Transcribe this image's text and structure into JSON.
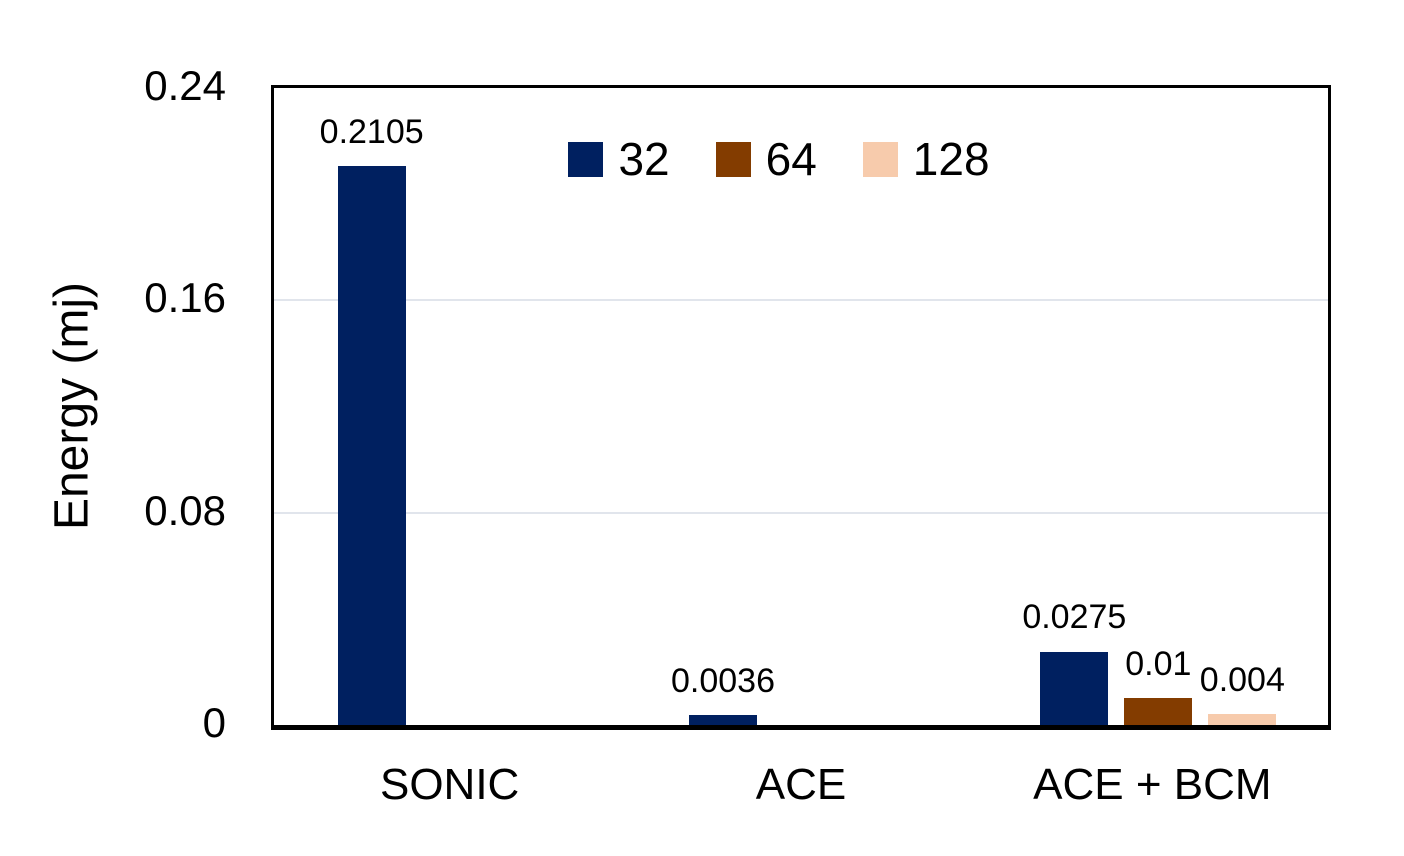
{
  "chart_data": {
    "type": "bar",
    "title": "",
    "xlabel": "",
    "ylabel": "Energy (mj)",
    "categories": [
      "SONIC",
      "ACE",
      "ACE + BCM"
    ],
    "series": [
      {
        "name": "32",
        "color": "#002060",
        "values": [
          0.2105,
          0.0036,
          0.0275
        ],
        "labels": [
          "0.2105",
          "0.0036",
          "0.0275"
        ]
      },
      {
        "name": "64",
        "color": "#833C00",
        "values": [
          null,
          null,
          0.01
        ],
        "labels": [
          null,
          null,
          "0.01"
        ]
      },
      {
        "name": "128",
        "color": "#F7CBAC",
        "values": [
          null,
          null,
          0.004
        ],
        "labels": [
          null,
          null,
          "0.004"
        ]
      }
    ],
    "ylim": [
      0,
      0.24
    ],
    "yticks": [
      {
        "value": 0,
        "label": "0"
      },
      {
        "value": 0.08,
        "label": "0.08"
      },
      {
        "value": 0.16,
        "label": "0.16"
      },
      {
        "value": 0.24,
        "label": "0.24"
      }
    ],
    "grid": "horizontal",
    "gridline_color": "#E1E5EC",
    "axis_color": "#000000",
    "legend_position": "top-inside"
  }
}
